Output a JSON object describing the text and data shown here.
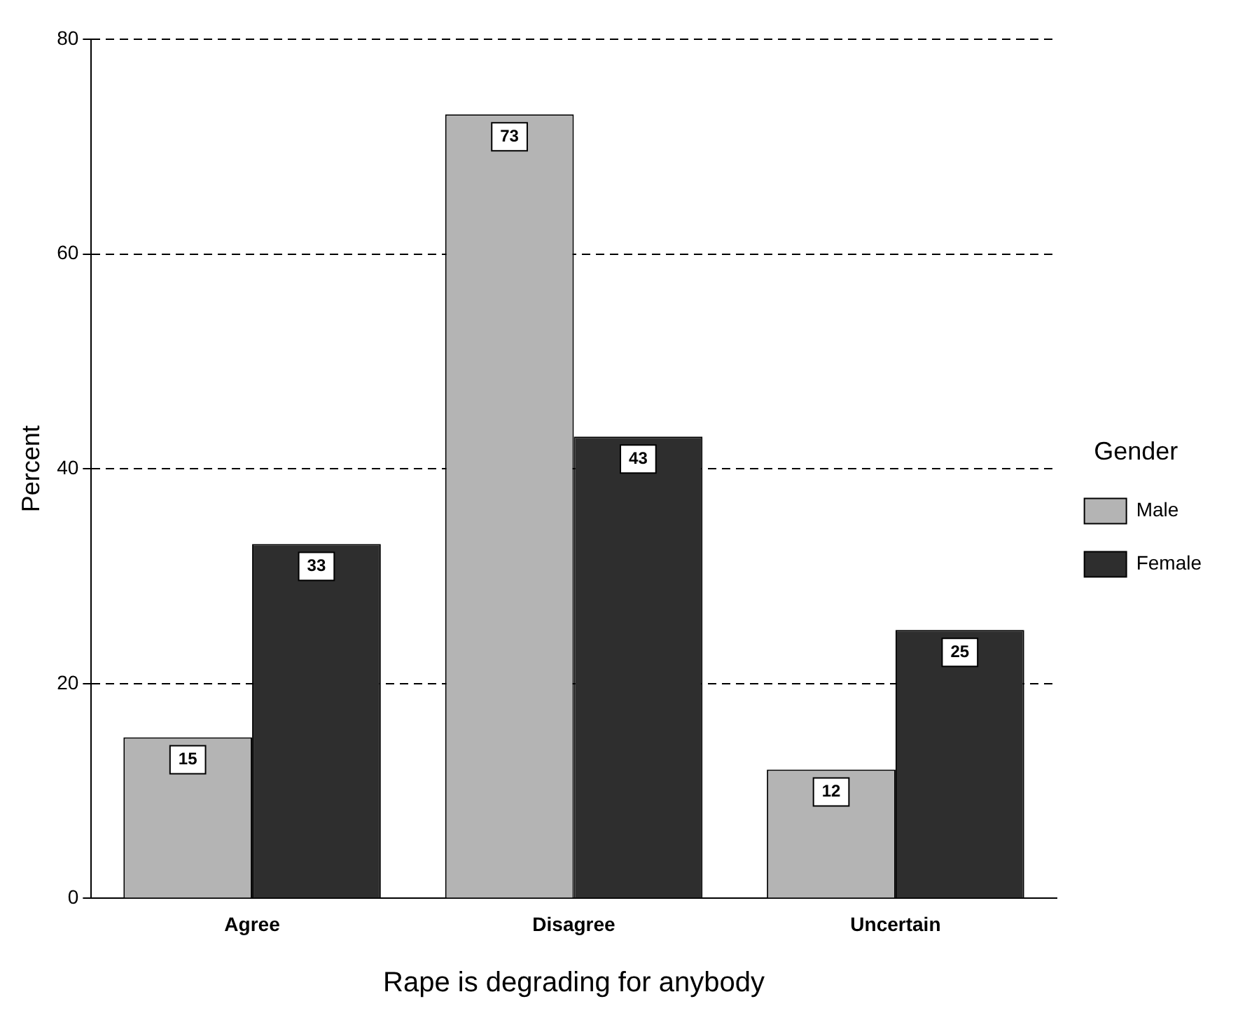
{
  "chart_data": {
    "type": "bar",
    "xlabel": "Rape is degrading for anybody",
    "ylabel": "Percent",
    "legend_title": "Gender",
    "categories": [
      "Agree",
      "Disagree",
      "Uncertain"
    ],
    "series": [
      {
        "name": "Male",
        "color": "#b4b4b4",
        "values": [
          15,
          73,
          12
        ]
      },
      {
        "name": "Female",
        "color": "#2e2e2e",
        "values": [
          33,
          43,
          25
        ]
      }
    ],
    "ylim": [
      0,
      80
    ],
    "yticks": [
      0,
      20,
      40,
      60,
      80
    ],
    "grid": "y",
    "line_style": "dashed",
    "legend": "right",
    "data_labels": true
  }
}
